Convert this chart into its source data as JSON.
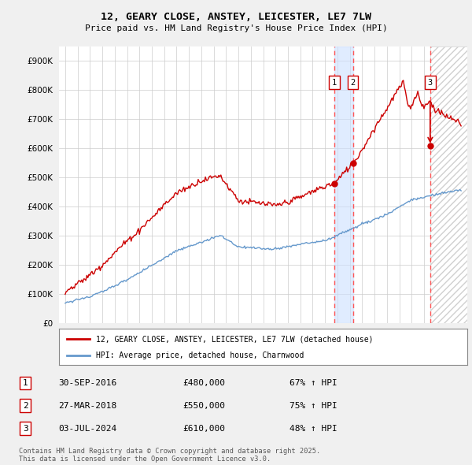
{
  "title": "12, GEARY CLOSE, ANSTEY, LEICESTER, LE7 7LW",
  "subtitle": "Price paid vs. HM Land Registry's House Price Index (HPI)",
  "red_label": "12, GEARY CLOSE, ANSTEY, LEICESTER, LE7 7LW (detached house)",
  "blue_label": "HPI: Average price, detached house, Charnwood",
  "transactions": [
    {
      "num": 1,
      "date": "30-SEP-2016",
      "price": 480000,
      "hpi_pct": "67% ↑ HPI",
      "year": 2016.75
    },
    {
      "num": 2,
      "date": "27-MAR-2018",
      "price": 550000,
      "hpi_pct": "75% ↑ HPI",
      "year": 2018.25
    },
    {
      "num": 3,
      "date": "03-JUL-2024",
      "price": 610000,
      "hpi_pct": "48% ↑ HPI",
      "year": 2024.5
    }
  ],
  "footer": "Contains HM Land Registry data © Crown copyright and database right 2025.\nThis data is licensed under the Open Government Licence v3.0.",
  "ylim": [
    0,
    950000
  ],
  "xlim": [
    1994.5,
    2027.5
  ],
  "yticks": [
    0,
    100000,
    200000,
    300000,
    400000,
    500000,
    600000,
    700000,
    800000,
    900000
  ],
  "ytick_labels": [
    "£0",
    "£100K",
    "£200K",
    "£300K",
    "£400K",
    "£500K",
    "£600K",
    "£700K",
    "£800K",
    "£900K"
  ],
  "bg_color": "#f0f0f0",
  "plot_bg_color": "#ffffff",
  "red_color": "#cc0000",
  "blue_color": "#6699cc",
  "grid_color": "#cccccc",
  "vline_shade_color": "#cce0ff",
  "vline_dashed_color": "#ff5555",
  "hatch_color": "#d0d0d0"
}
